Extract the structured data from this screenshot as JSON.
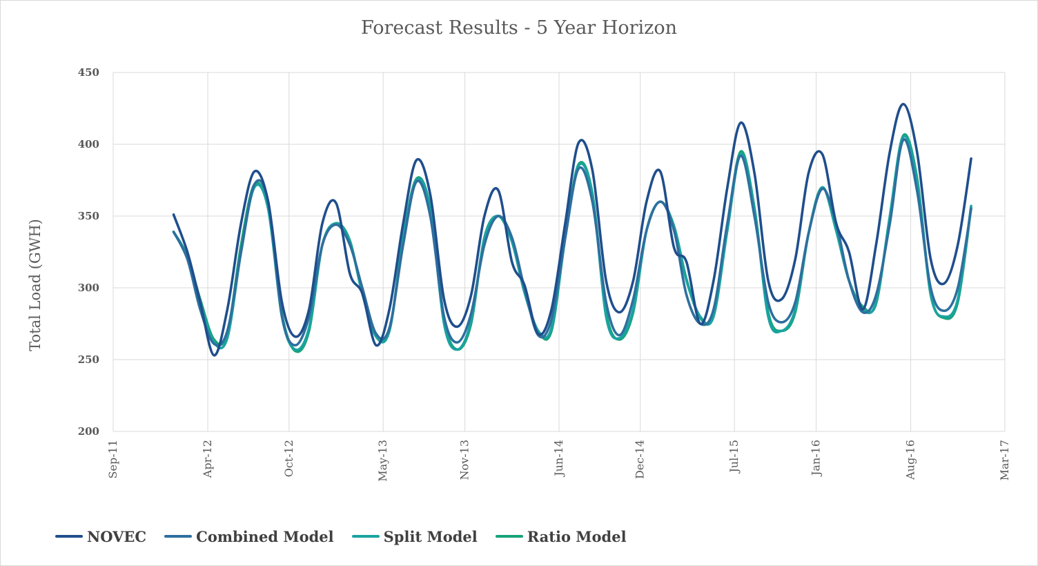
{
  "chart_data": {
    "type": "line",
    "title": "Forecast Results - 5 Year Horizon",
    "xlabel": "",
    "ylabel": "Total Load (GWH)",
    "ylim": [
      200,
      450
    ],
    "yticks": [
      200,
      250,
      300,
      350,
      400,
      450
    ],
    "xlim": [
      "2011-09-01",
      "2017-03-01"
    ],
    "xticks": [
      "Sep-11",
      "Apr-12",
      "Oct-12",
      "May-13",
      "Nov-13",
      "Jun-14",
      "Dec-14",
      "Jul-15",
      "Jan-16",
      "Aug-16",
      "Mar-17"
    ],
    "x": [
      "2012-01",
      "2012-02",
      "2012-03",
      "2012-04",
      "2012-05",
      "2012-06",
      "2012-07",
      "2012-08",
      "2012-09",
      "2012-10",
      "2012-11",
      "2012-12",
      "2013-01",
      "2013-02",
      "2013-03",
      "2013-04",
      "2013-05",
      "2013-06",
      "2013-07",
      "2013-08",
      "2013-09",
      "2013-10",
      "2013-11",
      "2013-12",
      "2014-01",
      "2014-02",
      "2014-03",
      "2014-04",
      "2014-05",
      "2014-06",
      "2014-07",
      "2014-08",
      "2014-09",
      "2014-10",
      "2014-11",
      "2014-12",
      "2015-01",
      "2015-02",
      "2015-03",
      "2015-04",
      "2015-05",
      "2015-06",
      "2015-07",
      "2015-08",
      "2015-09",
      "2015-10",
      "2015-11",
      "2015-12",
      "2016-01",
      "2016-02",
      "2016-03",
      "2016-04",
      "2016-05",
      "2016-06",
      "2016-07",
      "2016-08",
      "2016-09",
      "2016-10",
      "2016-11",
      "2016-12"
    ],
    "grid": true,
    "legend_position": "bottom-left",
    "series": [
      {
        "name": "NOVEC",
        "color": "#1f4e8c",
        "values": [
          351,
          325,
          290,
          253,
          285,
          345,
          381,
          360,
          290,
          266,
          285,
          345,
          359,
          310,
          296,
          260,
          285,
          345,
          389,
          365,
          292,
          273,
          295,
          350,
          368,
          318,
          302,
          268,
          285,
          345,
          401,
          382,
          305,
          283,
          305,
          360,
          381,
          328,
          318,
          275,
          305,
          370,
          415,
          380,
          305,
          292,
          320,
          380,
          393,
          345,
          325,
          285,
          330,
          395,
          428,
          395,
          320,
          303,
          330,
          390
        ]
      },
      {
        "name": "Combined Model",
        "color": "#2e6f9e",
        "values": [
          339,
          320,
          285,
          261,
          270,
          325,
          372,
          360,
          280,
          260,
          280,
          330,
          344,
          330,
          300,
          268,
          272,
          330,
          374,
          350,
          280,
          262,
          282,
          330,
          350,
          335,
          300,
          267,
          278,
          335,
          383,
          360,
          290,
          267,
          292,
          340,
          360,
          340,
          295,
          275,
          285,
          345,
          392,
          350,
          290,
          276,
          290,
          338,
          369,
          345,
          305,
          283,
          295,
          345,
          403,
          368,
          300,
          284,
          300,
          355
        ]
      },
      {
        "name": "Split Model",
        "color": "#1aa3a0",
        "values": [
          339,
          322,
          290,
          262,
          265,
          325,
          370,
          355,
          280,
          257,
          272,
          330,
          345,
          332,
          296,
          266,
          270,
          335,
          375,
          355,
          275,
          257,
          277,
          335,
          350,
          332,
          297,
          270,
          272,
          335,
          385,
          365,
          280,
          265,
          285,
          340,
          360,
          342,
          305,
          280,
          280,
          340,
          393,
          355,
          280,
          270,
          285,
          338,
          370,
          340,
          305,
          285,
          290,
          350,
          405,
          375,
          295,
          280,
          292,
          357
        ]
      },
      {
        "name": "Ratio Model",
        "color": "#16a37a",
        "values": [
          339,
          322,
          292,
          264,
          268,
          330,
          372,
          355,
          282,
          256,
          270,
          330,
          345,
          333,
          296,
          268,
          270,
          335,
          376,
          356,
          278,
          257,
          275,
          335,
          350,
          333,
          298,
          270,
          270,
          335,
          386,
          366,
          283,
          264,
          283,
          340,
          360,
          343,
          306,
          279,
          281,
          342,
          395,
          356,
          283,
          270,
          283,
          338,
          370,
          340,
          305,
          287,
          289,
          350,
          406,
          377,
          296,
          279,
          290,
          356
        ]
      }
    ]
  }
}
